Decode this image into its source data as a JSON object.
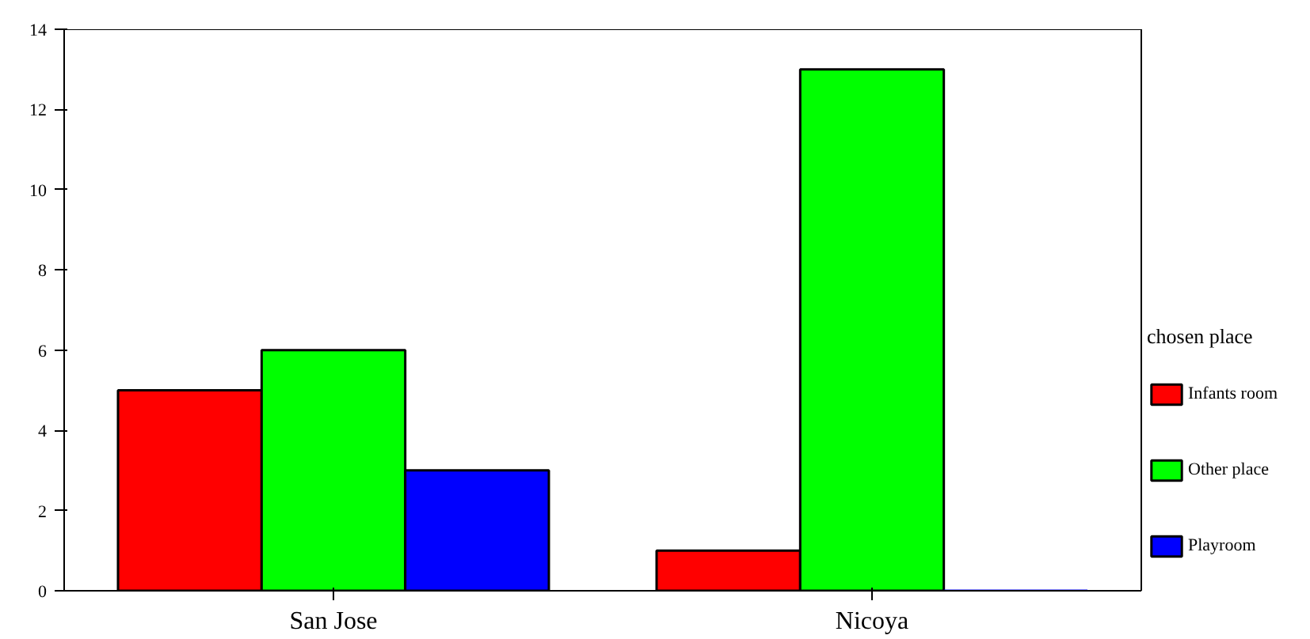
{
  "chart_data": {
    "type": "bar",
    "categories": [
      "San Jose",
      "Nicoya"
    ],
    "series": [
      {
        "name": "Infants room",
        "color": "#ff0000",
        "values": [
          5,
          1
        ]
      },
      {
        "name": "Other place",
        "color": "#00ff00",
        "values": [
          6,
          13
        ]
      },
      {
        "name": "Playroom",
        "color": "#0000ff",
        "values": [
          3,
          0
        ]
      }
    ],
    "ylim": [
      0,
      14
    ],
    "yticks": [
      0,
      2,
      4,
      6,
      8,
      10,
      12,
      14
    ],
    "grid": false,
    "legend": "right",
    "legend_title": "chosen place"
  }
}
